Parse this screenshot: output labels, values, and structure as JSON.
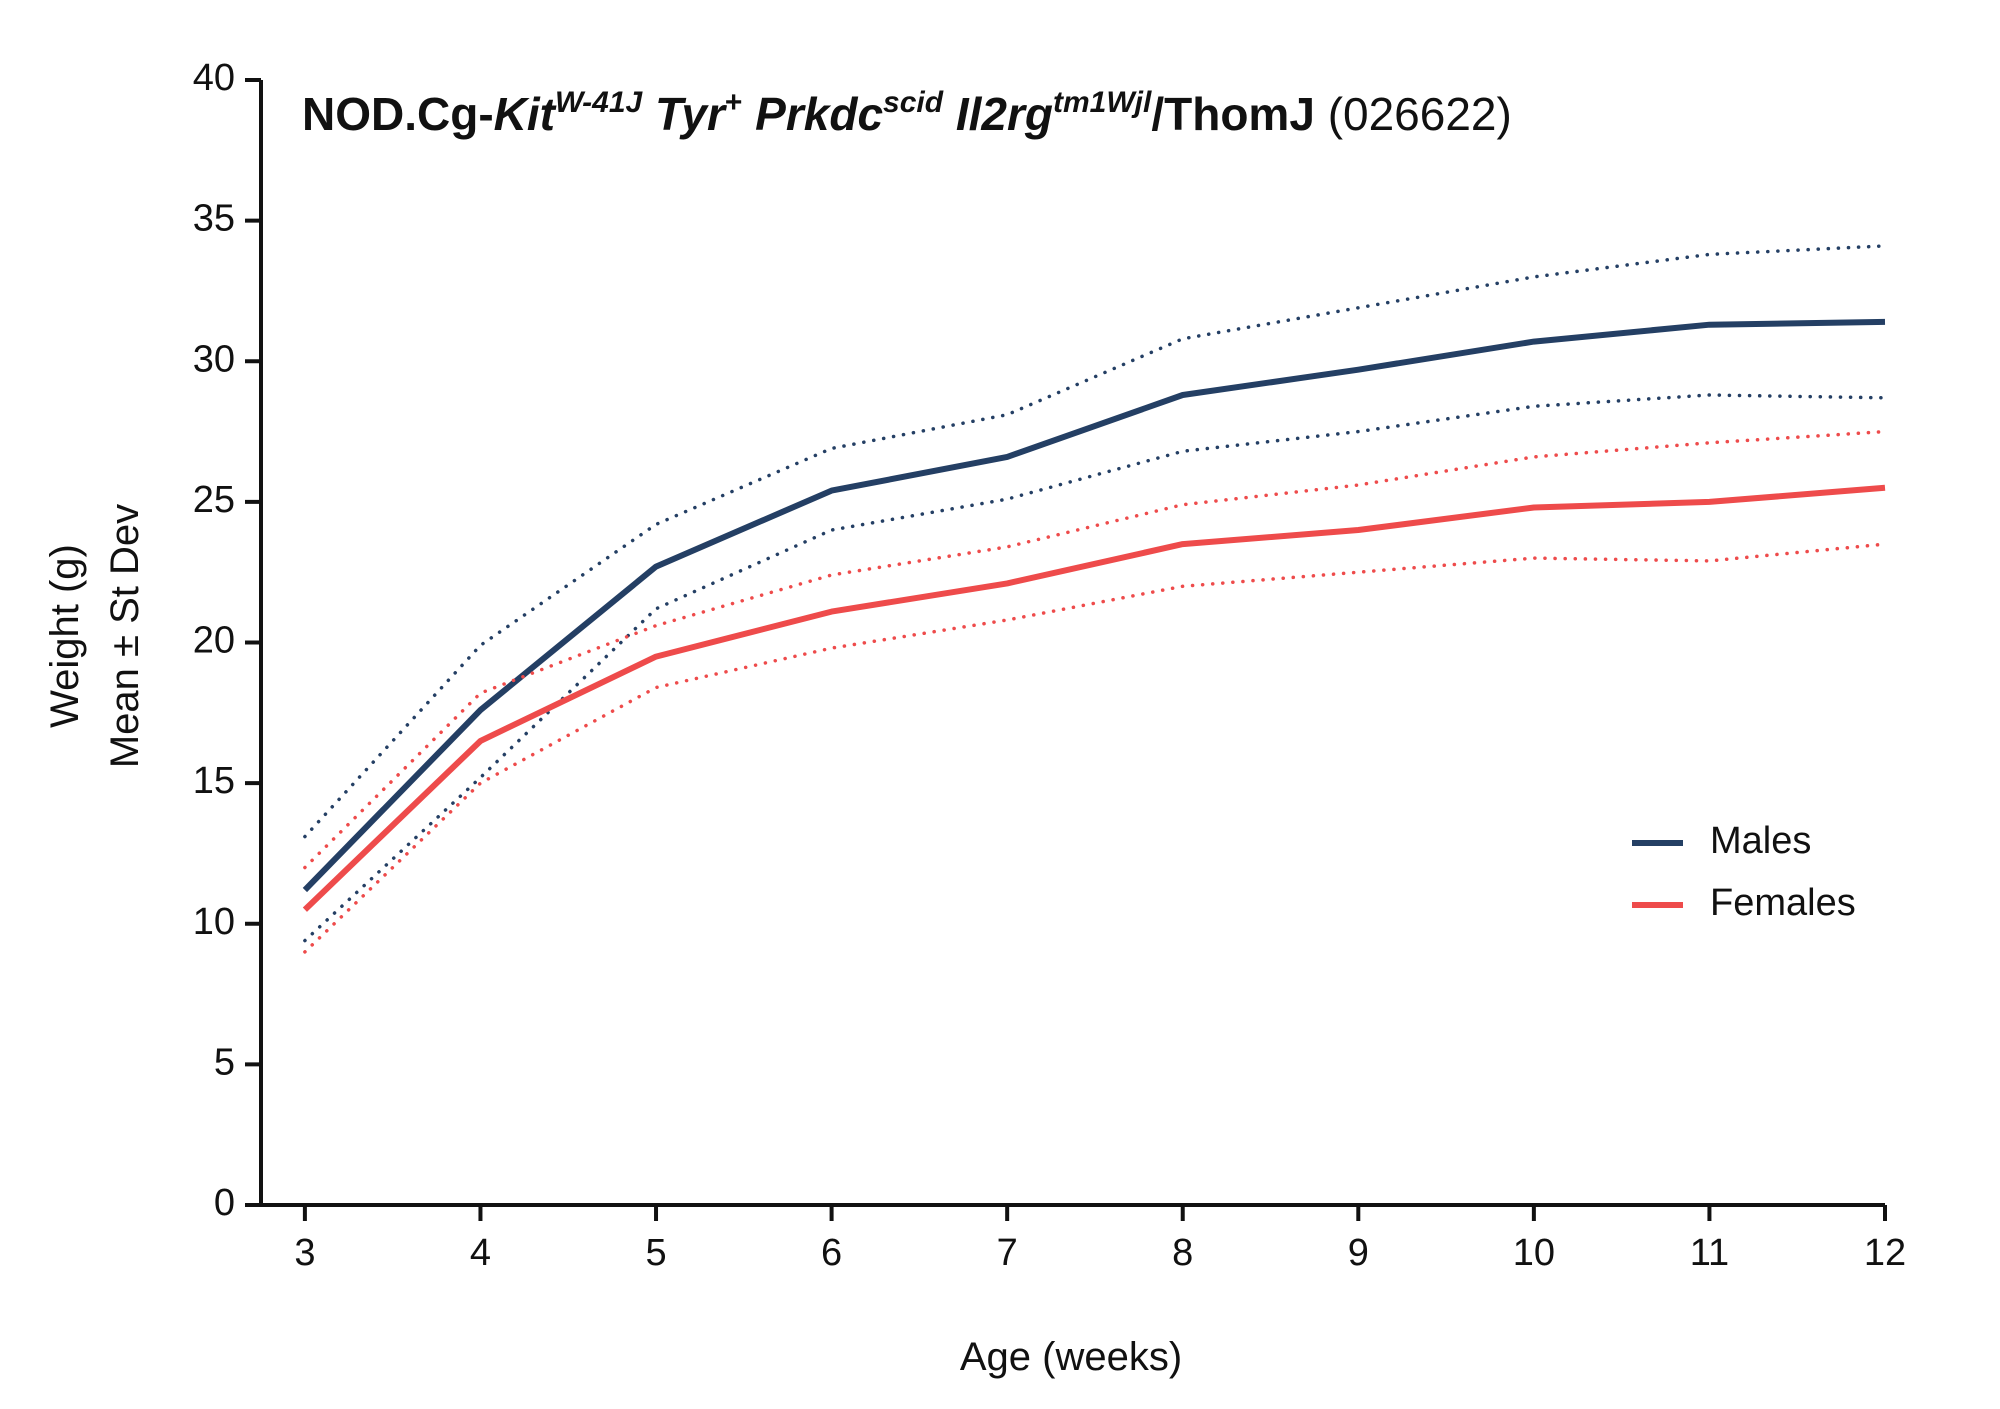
{
  "chart_data": {
    "type": "line",
    "title": [
      {
        "text": "NOD.Cg-",
        "bold": true
      },
      {
        "text": "Kit",
        "bold": true,
        "italic": true
      },
      {
        "text": "W-41J",
        "bold": true,
        "italic": true,
        "sup": true
      },
      {
        "text": " Tyr",
        "bold": true,
        "italic": true
      },
      {
        "text": "+",
        "bold": true,
        "sup": true
      },
      {
        "text": " Prkdc",
        "bold": true,
        "italic": true
      },
      {
        "text": "scid",
        "bold": true,
        "italic": true,
        "sup": true
      },
      {
        "text": " Il2rg",
        "bold": true,
        "italic": true
      },
      {
        "text": "tm1Wjl",
        "bold": true,
        "italic": true,
        "sup": true
      },
      {
        "text": "/ThomJ",
        "bold": true
      },
      {
        "text": " (026622)"
      }
    ],
    "xlabel": "Age (weeks)",
    "ylabel": [
      "Weight (g)",
      "Mean ± St Dev"
    ],
    "x": [
      3,
      4,
      5,
      6,
      7,
      8,
      9,
      10,
      11,
      12
    ],
    "series": [
      {
        "name": "Males",
        "color": "#243f64",
        "values": [
          11.2,
          17.6,
          22.7,
          25.4,
          26.6,
          28.8,
          29.7,
          30.7,
          31.3,
          31.4
        ],
        "upper": [
          13.1,
          19.9,
          24.2,
          26.9,
          28.1,
          30.8,
          31.9,
          33.0,
          33.8,
          34.1
        ],
        "lower": [
          9.4,
          15.2,
          21.2,
          24.0,
          25.1,
          26.8,
          27.5,
          28.4,
          28.8,
          28.7
        ]
      },
      {
        "name": "Females",
        "color": "#ee4b4b",
        "values": [
          10.5,
          16.5,
          19.5,
          21.1,
          22.1,
          23.5,
          24.0,
          24.8,
          25.0,
          25.5
        ],
        "upper": [
          12.0,
          18.2,
          20.6,
          22.4,
          23.4,
          24.9,
          25.6,
          26.6,
          27.1,
          27.5
        ],
        "lower": [
          9.0,
          15.0,
          18.4,
          19.8,
          20.8,
          22.0,
          22.5,
          23.0,
          22.9,
          23.5
        ]
      }
    ],
    "xlim": [
      2.75,
      12
    ],
    "ylim": [
      0,
      40
    ],
    "xticks": [
      3,
      4,
      5,
      6,
      7,
      8,
      9,
      10,
      11,
      12
    ],
    "yticks": [
      0,
      5,
      10,
      15,
      20,
      25,
      30,
      35,
      40
    ],
    "legend": "right"
  }
}
